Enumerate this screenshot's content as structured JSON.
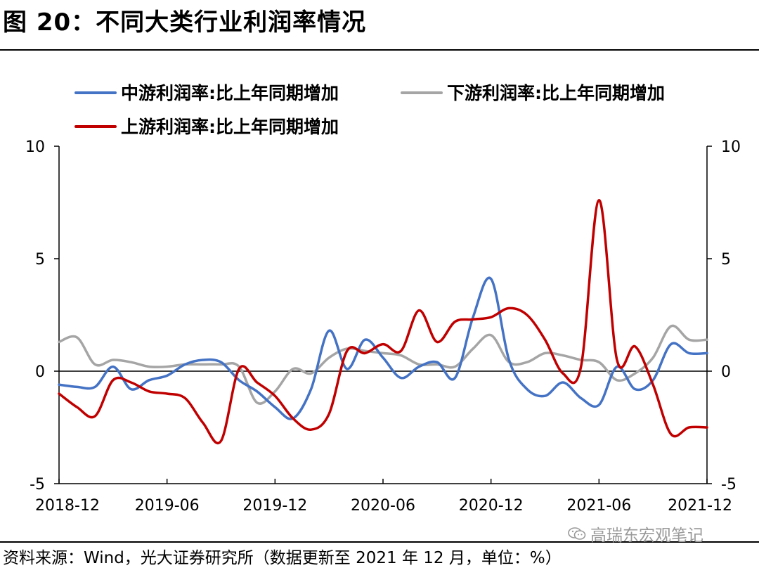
{
  "title": "图 20：不同大类行业利润率情况",
  "source": "资料来源：Wind，光大证券研究所（数据更新至 2021 年 12 月，单位：%）",
  "watermark": {
    "text": "高瑞东宏观笔记",
    "icon": "wechat-icon"
  },
  "chart_data": {
    "type": "line",
    "title": "",
    "xlabel": "",
    "ylabel": "",
    "ylim": [
      -5,
      10
    ],
    "y2lim": [
      -5,
      10
    ],
    "yticks": [
      "10",
      "5",
      "0",
      "-5"
    ],
    "xticks": [
      "2018-12",
      "2019-06",
      "2019-12",
      "2020-06",
      "2020-12",
      "2021-06",
      "2021-12"
    ],
    "grid": false,
    "zero_line": true,
    "legend_position": "top",
    "x": [
      "2018-12",
      "2019-01",
      "2019-02",
      "2019-03",
      "2019-04",
      "2019-05",
      "2019-06",
      "2019-07",
      "2019-08",
      "2019-09",
      "2019-10",
      "2019-11",
      "2019-12",
      "2020-01",
      "2020-02",
      "2020-03",
      "2020-04",
      "2020-05",
      "2020-06",
      "2020-07",
      "2020-08",
      "2020-09",
      "2020-10",
      "2020-11",
      "2020-12",
      "2021-01",
      "2021-02",
      "2021-03",
      "2021-04",
      "2021-05",
      "2021-06",
      "2021-07",
      "2021-08",
      "2021-09",
      "2021-10",
      "2021-11",
      "2021-12"
    ],
    "series": [
      {
        "name": "中游利润率:比上年同期增加",
        "color": "#4472c4",
        "values": [
          -0.6,
          -0.7,
          -0.7,
          0.2,
          -0.8,
          -0.4,
          -0.2,
          0.3,
          0.5,
          0.4,
          -0.4,
          -0.9,
          -1.6,
          -2.1,
          -0.8,
          1.8,
          0.1,
          1.4,
          0.6,
          -0.3,
          0.2,
          0.4,
          -0.3,
          2.4,
          4.1,
          0.5,
          -0.8,
          -1.1,
          -0.5,
          -1.2,
          -1.5,
          0.2,
          -0.8,
          -0.4,
          1.2,
          0.8,
          0.8
        ]
      },
      {
        "name": "下游利润率:比上年同期增加",
        "color": "#a5a5a5",
        "values": [
          1.3,
          1.5,
          0.3,
          0.5,
          0.4,
          0.2,
          0.2,
          0.3,
          0.3,
          0.3,
          0.2,
          -1.4,
          -0.9,
          0.1,
          -0.1,
          0.6,
          1.0,
          0.9,
          0.8,
          0.7,
          0.3,
          0.3,
          0.2,
          1.0,
          1.6,
          0.4,
          0.4,
          0.8,
          0.7,
          0.5,
          0.4,
          -0.4,
          -0.1,
          0.6,
          2.0,
          1.4,
          1.4
        ]
      },
      {
        "name": "上游利润率:比上年同期增加",
        "color": "#c00000",
        "values": [
          -1.0,
          -1.6,
          -2.0,
          -0.4,
          -0.5,
          -0.9,
          -1.0,
          -1.2,
          -2.3,
          -3.1,
          0.1,
          -0.5,
          -1.1,
          -2.1,
          -2.6,
          -1.9,
          0.9,
          0.8,
          1.2,
          0.9,
          2.7,
          1.3,
          2.2,
          2.3,
          2.4,
          2.8,
          2.5,
          1.4,
          -0.1,
          0.2,
          7.6,
          0.5,
          1.1,
          -0.6,
          -2.8,
          -2.5,
          -2.5
        ]
      }
    ]
  }
}
